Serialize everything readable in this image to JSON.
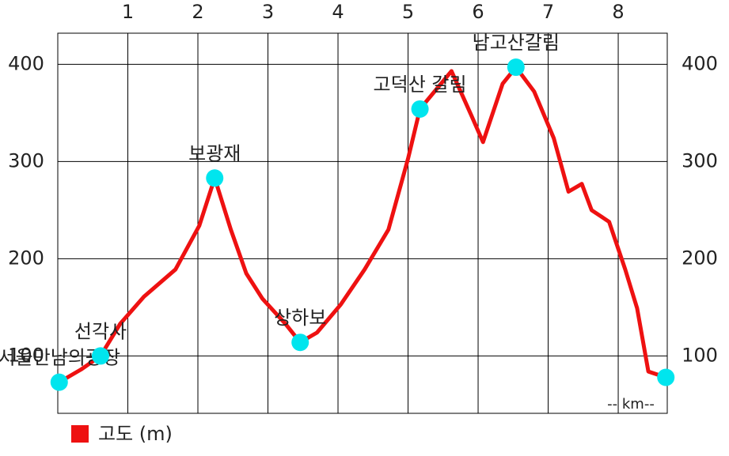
{
  "chart_data": {
    "type": "line",
    "x": [
      0.02,
      0.33,
      0.61,
      0.89,
      1.23,
      1.68,
      2.02,
      2.24,
      2.47,
      2.69,
      2.92,
      3.25,
      3.46,
      3.7,
      4.04,
      4.38,
      4.72,
      5.0,
      5.17,
      5.62,
      5.9,
      6.07,
      6.35,
      6.54,
      6.8,
      7.08,
      7.29,
      7.48,
      7.62,
      7.87,
      8.1,
      8.27,
      8.43,
      8.68
    ],
    "series": [
      {
        "name": "고도 (m)",
        "color": "#ee1111",
        "values": [
          73,
          86,
          100,
          133,
          161,
          189,
          234,
          283,
          230,
          185,
          159,
          133,
          114,
          124,
          153,
          189,
          230,
          303,
          354,
          393,
          348,
          320,
          380,
          397,
          372,
          324,
          269,
          277,
          250,
          238,
          189,
          149,
          84,
          78
        ]
      }
    ],
    "points": {
      "color": "#00e5ee",
      "x": [
        0.02,
        0.61,
        2.24,
        3.46,
        5.17,
        6.54,
        8.68
      ],
      "values": [
        73,
        100,
        283,
        114,
        354,
        397,
        78
      ],
      "labels": [
        "서울만남의광장",
        "선각사",
        "보광재",
        "상하보",
        "고덕산 갈림",
        "남고산갈림",
        null
      ]
    },
    "annotation": "-- km--",
    "xlim": [
      0,
      8.7
    ],
    "ylim": [
      41,
      432
    ],
    "xticks": [
      1,
      2,
      3,
      4,
      5,
      6,
      7,
      8
    ],
    "yticks": [
      100,
      200,
      300,
      400
    ],
    "grid": true
  }
}
